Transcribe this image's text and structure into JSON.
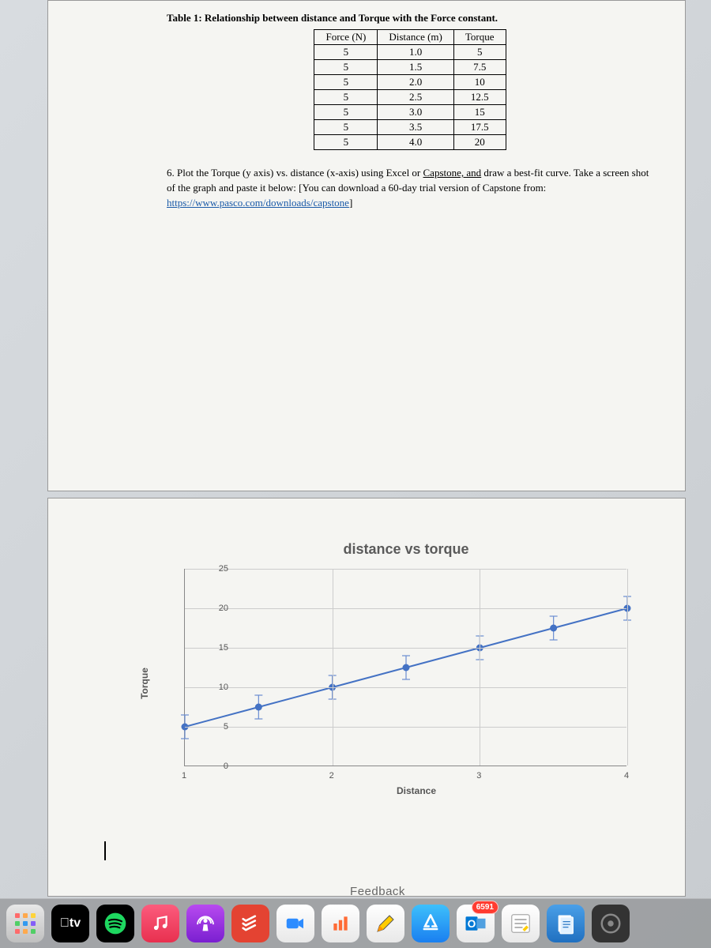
{
  "document": {
    "table_title": "Table 1: Relationship between distance and Torque with the Force constant.",
    "table": {
      "columns": [
        "Force (N)",
        "Distance (m)",
        "Torque"
      ],
      "rows": [
        [
          "5",
          "1.0",
          "5"
        ],
        [
          "5",
          "1.5",
          "7.5"
        ],
        [
          "5",
          "2.0",
          "10"
        ],
        [
          "5",
          "2.5",
          "12.5"
        ],
        [
          "5",
          "3.0",
          "15"
        ],
        [
          "5",
          "3.5",
          "17.5"
        ],
        [
          "5",
          "4.0",
          "20"
        ]
      ]
    },
    "instruction_prefix": "6. Plot the Torque (y axis) vs. distance (x-axis) using Excel or ",
    "instruction_underline1": "Capstone, and",
    "instruction_mid": " draw a best-fit curve.  Take a screen shot of the graph and paste it below: [You can download a 60-day trial version of Capstone from: ",
    "instruction_link": "https://www.pasco.com/downloads/capstone",
    "instruction_suffix": "]"
  },
  "chart": {
    "type": "line-scatter",
    "title": "distance vs torque",
    "xlabel": "Distance",
    "ylabel": "Torque",
    "xlim": [
      1,
      4
    ],
    "ylim": [
      0,
      25
    ],
    "xticks": [
      1,
      2,
      3,
      4
    ],
    "yticks": [
      0,
      5,
      10,
      15,
      20,
      25
    ],
    "x_gridlines": [
      2,
      3,
      4
    ],
    "y_gridlines": [
      5,
      10,
      15,
      20,
      25
    ],
    "series": {
      "x": [
        1.0,
        1.5,
        2.0,
        2.5,
        3.0,
        3.5,
        4.0
      ],
      "y": [
        5,
        7.5,
        10,
        12.5,
        15,
        17.5,
        20
      ],
      "line_color": "#4472c4",
      "marker_color": "#4472c4",
      "errorbar_color": "#6a8dd2",
      "line_width": 2,
      "marker_radius": 4.5,
      "y_error": 1.5
    },
    "grid_color": "#cccccc",
    "axis_color": "#888888",
    "background": "#f5f5f2",
    "title_fontsize": 18,
    "label_fontsize": 12,
    "tick_fontsize": 11
  },
  "feedback_label": "Feedback",
  "dock": {
    "icons": [
      {
        "name": "launchpad-icon",
        "bg": "linear-gradient(#e8e8e8,#c0c0c0)",
        "type": "launchpad"
      },
      {
        "name": "apple-tv-icon",
        "bg": "#000",
        "text": "tv",
        "apple": true
      },
      {
        "name": "spotify-icon",
        "bg": "#000",
        "svg": "spotify"
      },
      {
        "name": "music-icon",
        "bg": "linear-gradient(#fc5c7d,#e8304f)",
        "svg": "music"
      },
      {
        "name": "podcasts-icon",
        "bg": "linear-gradient(#b84af0,#7a1fd0)",
        "svg": "podcast"
      },
      {
        "name": "todoist-icon",
        "bg": "#e44332",
        "svg": "todoist"
      },
      {
        "name": "zoom-icon",
        "bg": "linear-gradient(#fff,#e8e8e8)",
        "svg": "zoom"
      },
      {
        "name": "stats-icon",
        "bg": "linear-gradient(#fff,#e8e8e8)",
        "svg": "bars"
      },
      {
        "name": "notes-icon",
        "bg": "linear-gradient(#fff,#e8e8e8)",
        "svg": "pencil"
      },
      {
        "name": "app-store-icon",
        "bg": "linear-gradient(#3ec0fb,#1a7ff0)",
        "svg": "appstore"
      },
      {
        "name": "outlook-icon",
        "bg": "linear-gradient(#fff,#e8e8e8)",
        "svg": "outlook",
        "badge": "6591"
      },
      {
        "name": "textedit-icon",
        "bg": "linear-gradient(#fff,#e8e8e8)",
        "svg": "textedit"
      },
      {
        "name": "files-icon",
        "bg": "linear-gradient(#4aa0e8,#2070c0)",
        "svg": "files"
      },
      {
        "name": "other-icon",
        "bg": "#333",
        "svg": "disc"
      }
    ]
  }
}
